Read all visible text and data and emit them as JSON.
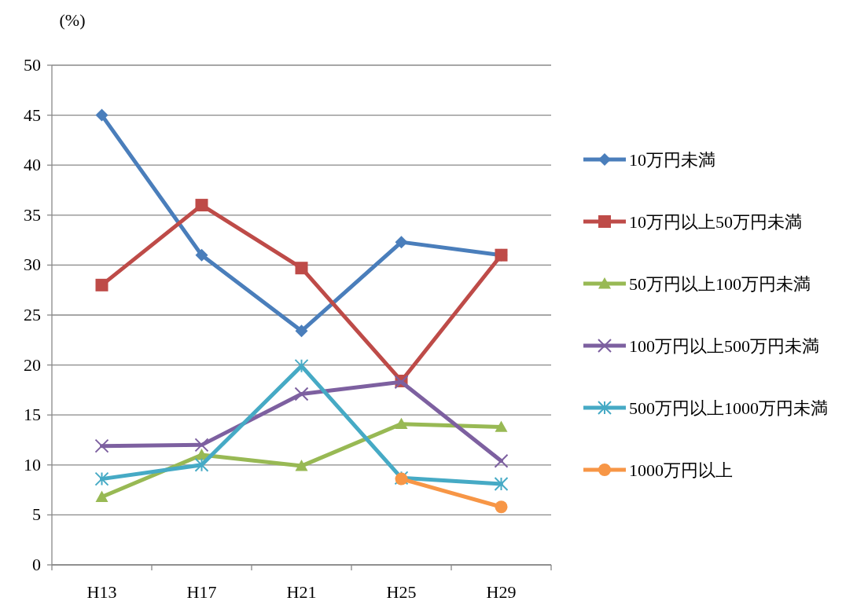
{
  "chart_data": {
    "type": "line",
    "ylabel": "(%)",
    "categories": [
      "H13",
      "H17",
      "H21",
      "H25",
      "H29"
    ],
    "ylim": [
      0,
      50
    ],
    "yticks": [
      0,
      5,
      10,
      15,
      20,
      25,
      30,
      35,
      40,
      45,
      50
    ],
    "grid": "y",
    "legend": "right",
    "line_style": "solid",
    "series": [
      {
        "name": "10万円未満",
        "color": "#4a7ebb",
        "marker": "diamond",
        "values": [
          45,
          31,
          23.4,
          32.3,
          31
        ]
      },
      {
        "name": "10万円以上50万円未満",
        "color": "#be4b48",
        "marker": "square",
        "values": [
          28,
          36,
          29.7,
          18.4,
          31
        ]
      },
      {
        "name": "50万円以上100万円未満",
        "color": "#98b954",
        "marker": "triangle",
        "values": [
          6.8,
          11,
          9.9,
          14.1,
          13.8
        ]
      },
      {
        "name": "100万円以上500万円未満",
        "color": "#7d60a0",
        "marker": "cross",
        "values": [
          11.9,
          12,
          17.1,
          18.3,
          10.4
        ]
      },
      {
        "name": "500万円以上1000万円未満",
        "color": "#46aac5",
        "marker": "cross",
        "values": [
          8.6,
          10,
          19.9,
          8.7,
          8.1
        ]
      },
      {
        "name": "1000万円以上",
        "color": "#f79646",
        "marker": "circle",
        "values": [
          null,
          null,
          null,
          8.6,
          5.8
        ]
      }
    ]
  }
}
